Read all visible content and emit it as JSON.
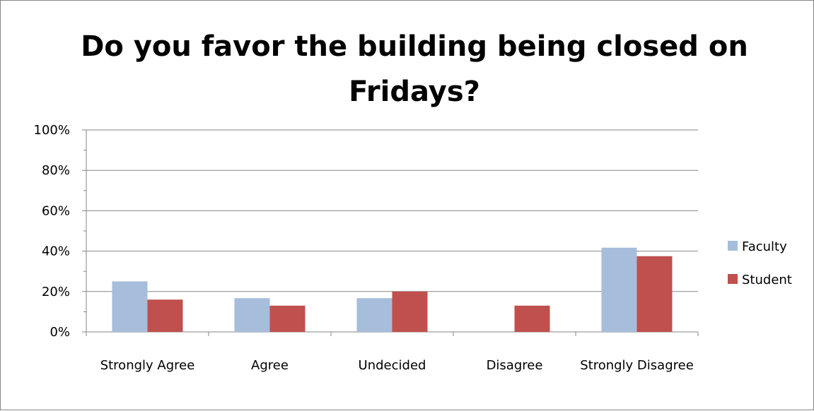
{
  "chart_data": {
    "type": "bar",
    "title": "Do you favor the building being closed on Fridays?",
    "categories": [
      "Strongly Agree",
      "Agree",
      "Undecided",
      "Disagree",
      "Strongly Disagree"
    ],
    "series": [
      {
        "name": "Faculty",
        "values": [
          25,
          16.7,
          16.7,
          0,
          41.7
        ],
        "color": "#a6bddb"
      },
      {
        "name": "Student",
        "values": [
          16,
          13,
          20,
          13,
          37.5
        ],
        "color": "#c0504d"
      }
    ],
    "y_ticks": [
      "0%",
      "20%",
      "40%",
      "60%",
      "80%",
      "100%"
    ],
    "ylim": [
      0,
      100
    ],
    "grid": true,
    "legend": "right"
  }
}
